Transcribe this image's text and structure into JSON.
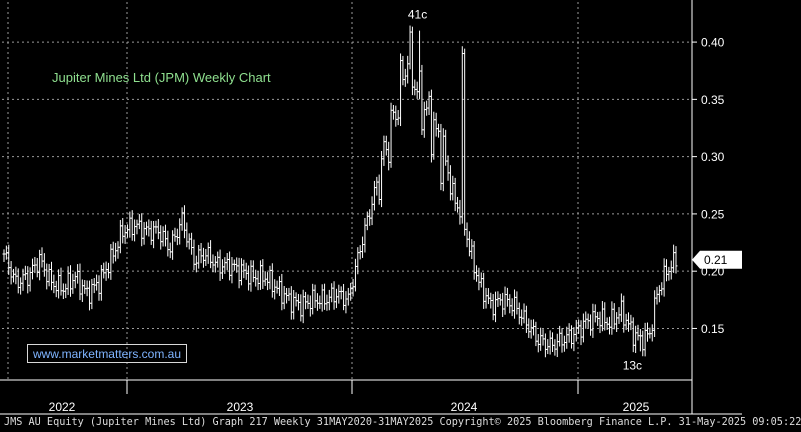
{
  "chart_data": {
    "type": "line",
    "title": "Jupiter Mines Ltd (JPM) Weekly Chart",
    "ylim": [
      0.105,
      0.435
    ],
    "y_ticks": [
      {
        "value": 0.15,
        "label": "0.15"
      },
      {
        "value": 0.2,
        "label": "0.20"
      },
      {
        "value": 0.25,
        "label": "0.25"
      },
      {
        "value": 0.3,
        "label": "0.30"
      },
      {
        "value": 0.35,
        "label": "0.35"
      },
      {
        "value": 0.4,
        "label": "0.40"
      }
    ],
    "x_ticks": [
      "2022",
      "2023",
      "2024",
      "2025"
    ],
    "last_price": {
      "value": 0.21,
      "label": "0.21"
    },
    "annotations": [
      {
        "text": "41c",
        "value": 0.41
      },
      {
        "text": "13c",
        "value": 0.13
      }
    ],
    "grid": true,
    "series": [
      {
        "weeks": [
          0,
          5,
          10,
          15,
          20,
          25,
          30,
          35,
          40,
          45,
          50,
          55,
          60,
          65,
          70,
          75,
          80,
          85,
          90,
          95,
          100,
          105,
          110,
          115,
          120,
          125,
          130,
          135,
          140,
          145,
          150,
          155,
          160,
          165,
          170,
          175,
          180,
          185,
          190,
          193,
          196,
          200,
          205,
          210,
          215,
          220,
          225,
          230,
          235,
          240,
          245,
          250,
          255,
          260,
          265,
          268,
          272,
          275,
          279,
          283
        ],
        "values": [
          0.215,
          0.19,
          0.195,
          0.21,
          0.19,
          0.185,
          0.195,
          0.18,
          0.19,
          0.21,
          0.235,
          0.24,
          0.235,
          0.235,
          0.22,
          0.245,
          0.21,
          0.215,
          0.205,
          0.205,
          0.2,
          0.195,
          0.195,
          0.185,
          0.175,
          0.17,
          0.175,
          0.175,
          0.18,
          0.175,
          0.22,
          0.26,
          0.3,
          0.34,
          0.39,
          0.35,
          0.33,
          0.3,
          0.26,
          0.25,
          0.22,
          0.19,
          0.17,
          0.175,
          0.17,
          0.155,
          0.14,
          0.135,
          0.14,
          0.145,
          0.155,
          0.16,
          0.155,
          0.165,
          0.145,
          0.14,
          0.145,
          0.18,
          0.2,
          0.21
        ]
      }
    ]
  },
  "labels": {
    "chart_title": "Jupiter Mines Ltd (JPM) Weekly Chart",
    "url": "www.marketmatters.com.au",
    "footer": "JMS AU Equity (Jupiter Mines Ltd) Graph 217  Weekly 31MAY2020-31MAY2025 Copyright© 2025 Bloomberg Finance L.P. 31-May-2025 09:05:22"
  },
  "colors": {
    "background": "#000000",
    "price": "#ffffff",
    "grid": "#9a9a9a",
    "title": "#8fe08f",
    "url": "#7fb4ff"
  }
}
